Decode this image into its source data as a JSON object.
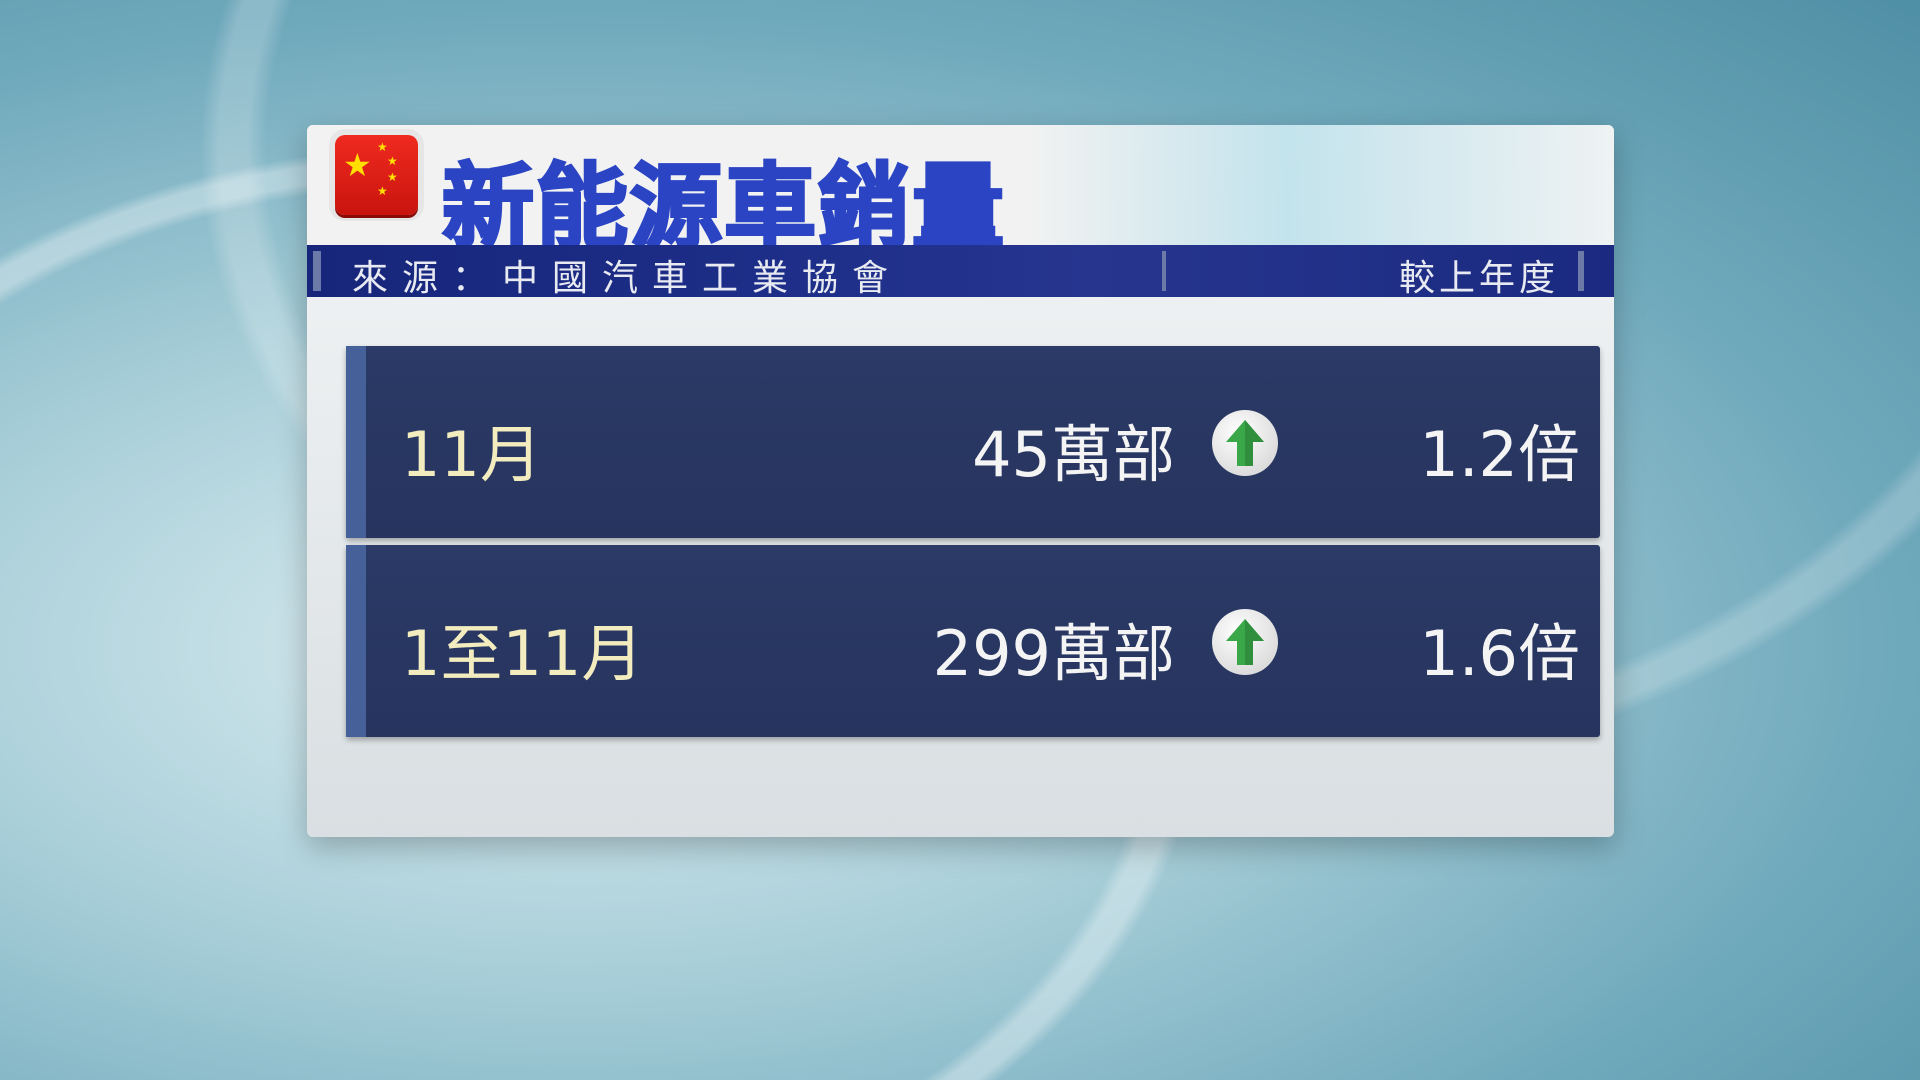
{
  "header": {
    "title": "新能源車銷量",
    "source": "來源：中國汽車工業協會",
    "compare_label": "較上年度",
    "flag_icon": "china-flag-icon"
  },
  "rows": [
    {
      "period": "11月",
      "value": "45萬部",
      "trend": "up",
      "ratio": "1.2倍"
    },
    {
      "period": "1至11月",
      "value": "299萬部",
      "trend": "up",
      "ratio": "1.6倍"
    }
  ],
  "colors": {
    "title": "#2a44c4",
    "strip": "#1e2f8a",
    "row": "#2b3a66",
    "arrow": "#3aa848"
  }
}
